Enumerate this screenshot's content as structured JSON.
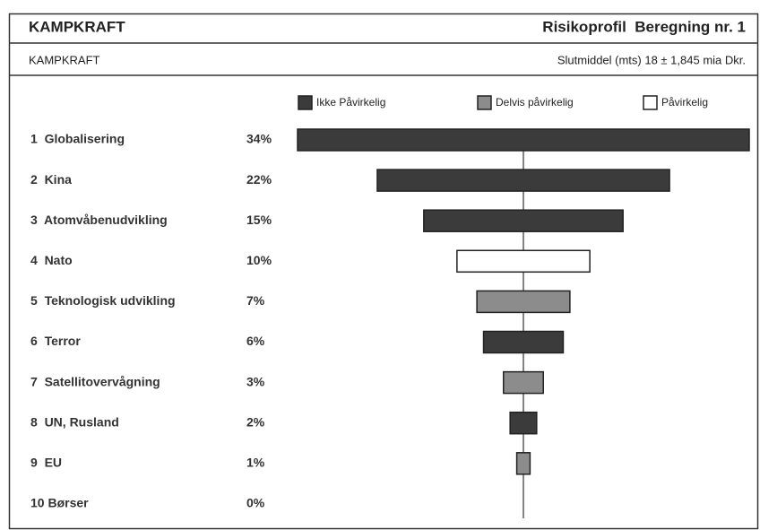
{
  "chart_data": {
    "type": "tornado",
    "header_left": "KAMPKRAFT",
    "header_right": "Risikoprofil  Beregning nr. 1",
    "subheader_left": "KAMPKRAFT",
    "subheader_right": "Slutmiddel (mts) 18 ± 1,845 mia Dkr.",
    "series": [
      {
        "name": "Ikke Påvirkelig",
        "color": "#3b3b3b"
      },
      {
        "name": "Delvis påvirkelig",
        "color": "#8c8c8c"
      },
      {
        "name": "Påvirkelig",
        "color": "#ffffff"
      }
    ],
    "categories": [
      "1  Globalisering",
      "2  Kina",
      "3  Atomvåbenudvikling",
      "4  Nato",
      "5  Teknologisk udvikling",
      "6  Terror",
      "7  Satellitovervågning",
      "8  UN, Rusland",
      "9  EU",
      "10 Børser"
    ],
    "values": [
      34,
      22,
      15,
      10,
      7,
      6,
      3,
      2,
      1,
      0
    ],
    "value_labels": [
      "34%",
      "22%",
      "15%",
      "10%",
      "7%",
      "6%",
      "3%",
      "2%",
      "1%",
      "0%"
    ],
    "category_series": [
      0,
      0,
      0,
      2,
      1,
      0,
      1,
      0,
      1,
      null
    ]
  }
}
